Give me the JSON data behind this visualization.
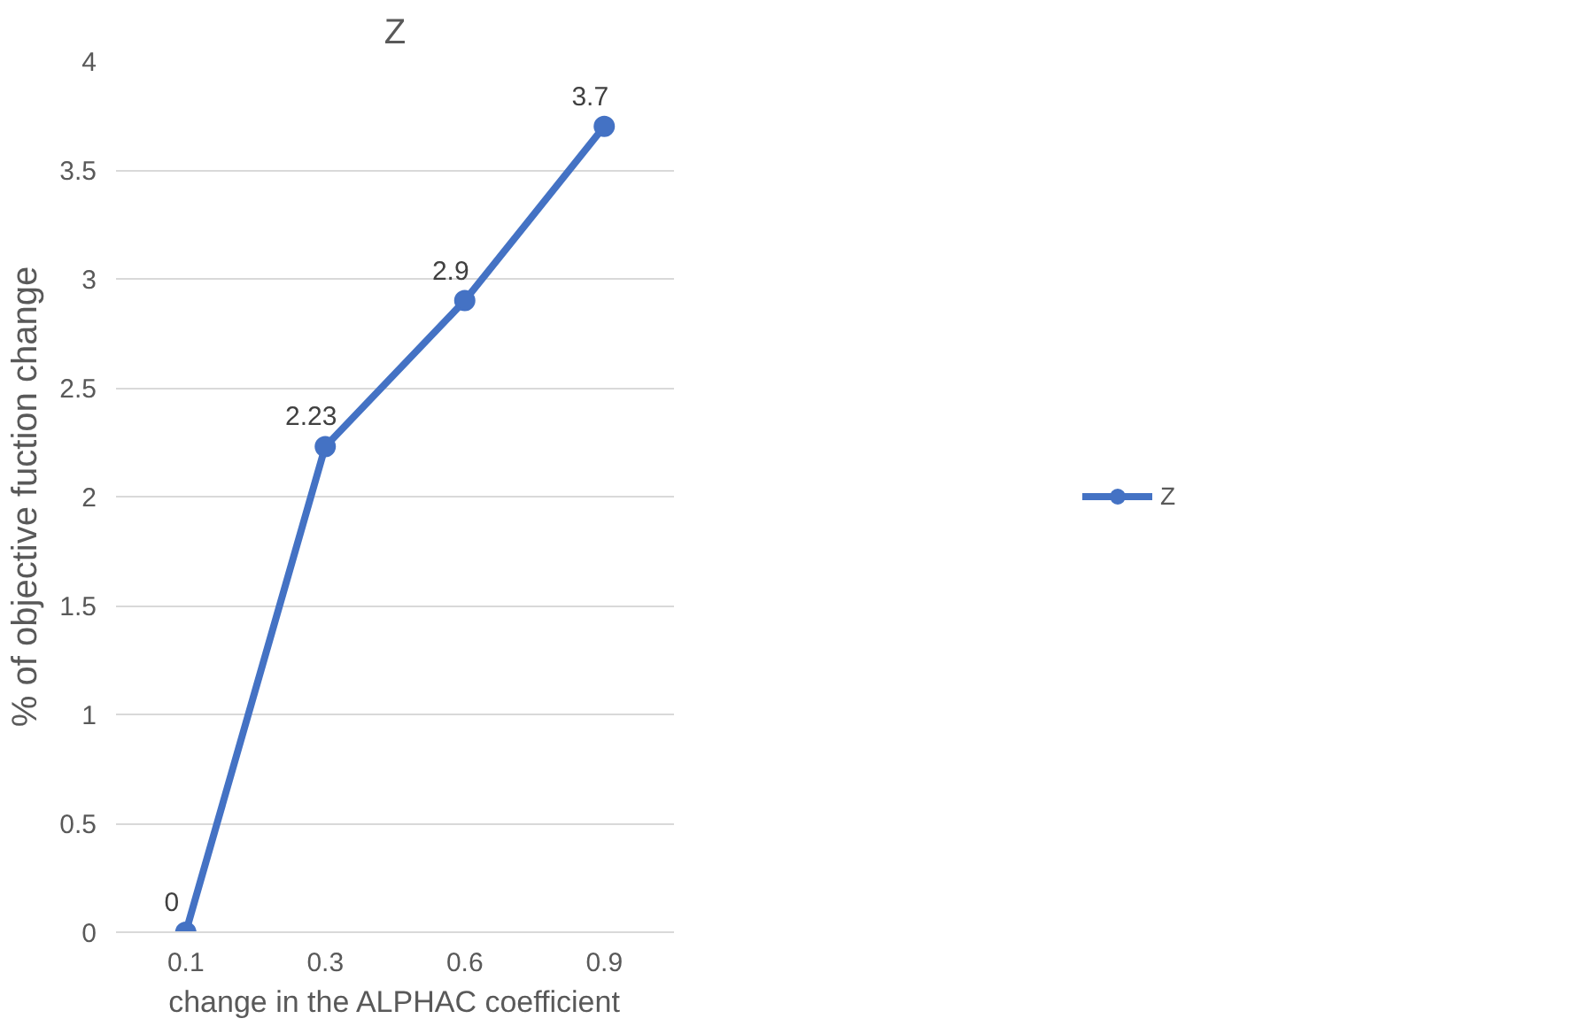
{
  "chart_data": {
    "type": "line",
    "title": "Z",
    "xlabel": "change in the ALPHAC coefficient",
    "ylabel": "% of objective fuction change",
    "categories": [
      "0.1",
      "0.3",
      "0.6",
      "0.9"
    ],
    "series": [
      {
        "name": "Z",
        "color": "#4472c4",
        "values": [
          0,
          2.23,
          2.9,
          3.7
        ]
      }
    ],
    "ylim": [
      0,
      4
    ],
    "yticks": [
      0,
      0.5,
      1,
      1.5,
      2,
      2.5,
      3,
      3.5,
      4
    ],
    "grid": "y",
    "legend": "right",
    "marker": "circle",
    "line_style": "solid",
    "data_labels": true
  }
}
